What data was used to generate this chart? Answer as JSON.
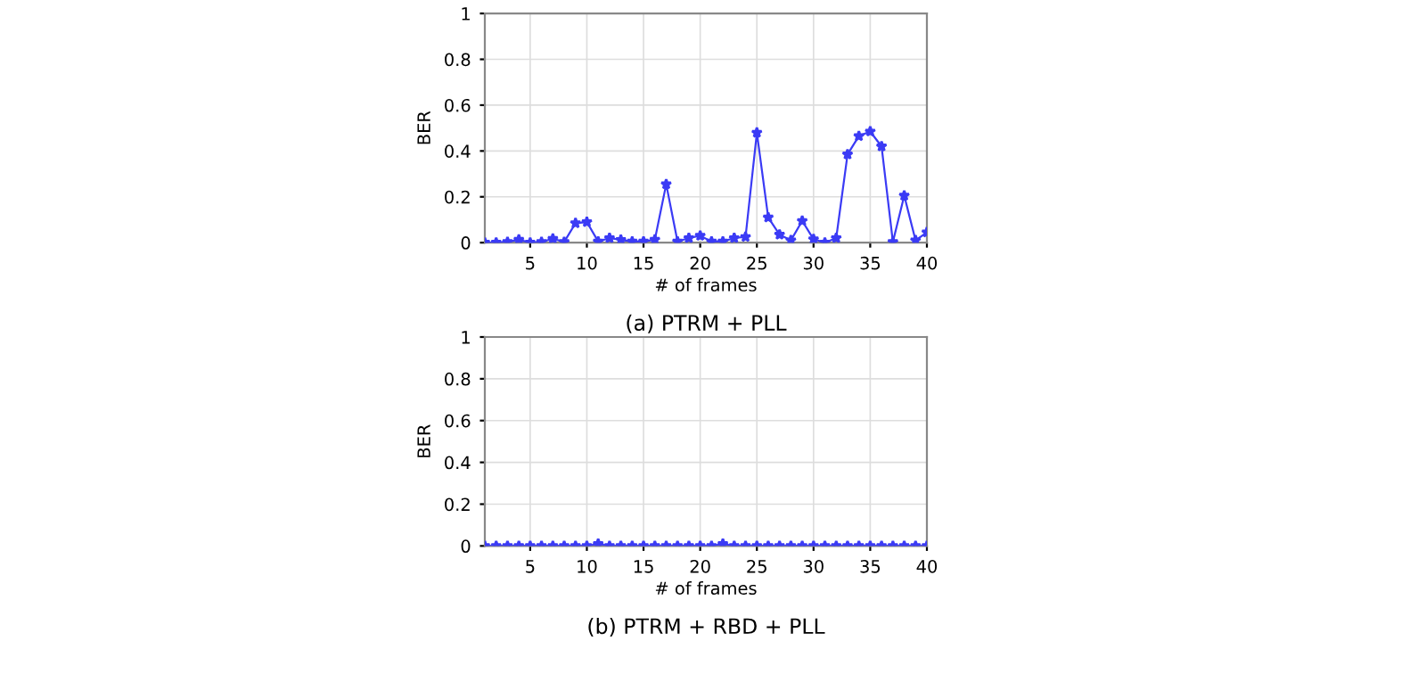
{
  "chart_data": [
    {
      "type": "line",
      "title": "(a) PTRM + PLL",
      "xlabel": "# of frames",
      "ylabel": "BER",
      "x": [
        1,
        2,
        3,
        4,
        5,
        6,
        7,
        8,
        9,
        10,
        11,
        12,
        13,
        14,
        15,
        16,
        17,
        18,
        19,
        20,
        21,
        22,
        23,
        24,
        25,
        26,
        27,
        28,
        29,
        30,
        31,
        32,
        33,
        34,
        35,
        36,
        37,
        38,
        39,
        40
      ],
      "series": [
        {
          "color": "#3b3bf5",
          "values": [
            0,
            0,
            0.003,
            0.013,
            0,
            0.003,
            0.017,
            0.003,
            0.085,
            0.09,
            0.005,
            0.02,
            0.012,
            0.005,
            0.005,
            0.013,
            0.255,
            0.005,
            0.02,
            0.03,
            0.005,
            0.005,
            0.02,
            0.025,
            0.48,
            0.11,
            0.035,
            0.01,
            0.095,
            0.015,
            0,
            0.02,
            0.385,
            0.465,
            0.485,
            0.42,
            0.003,
            0.205,
            0.01,
            0.045
          ]
        }
      ],
      "xlim": [
        1,
        40
      ],
      "xticks": [
        5,
        10,
        15,
        20,
        25,
        30,
        35,
        40
      ],
      "ylim": [
        0,
        1
      ],
      "yticks": [
        0,
        0.2,
        0.4,
        0.6,
        0.8,
        1
      ],
      "grid": true,
      "marker": "star",
      "line_style": "solid"
    },
    {
      "type": "line",
      "title": "(b) PTRM + RBD + PLL",
      "xlabel": "# of frames",
      "ylabel": "BER",
      "x": [
        1,
        2,
        3,
        4,
        5,
        6,
        7,
        8,
        9,
        10,
        11,
        12,
        13,
        14,
        15,
        16,
        17,
        18,
        19,
        20,
        21,
        22,
        23,
        24,
        25,
        26,
        27,
        28,
        29,
        30,
        31,
        32,
        33,
        34,
        35,
        36,
        37,
        38,
        39,
        40
      ],
      "series": [
        {
          "color": "#3b3bf5",
          "values": [
            0,
            0,
            0,
            0,
            0,
            0,
            0,
            0,
            0,
            0,
            0.01,
            0,
            0,
            0,
            0,
            0,
            0,
            0,
            0,
            0,
            0,
            0.01,
            0,
            0,
            0,
            0,
            0,
            0,
            0,
            0,
            0,
            0,
            0,
            0,
            0,
            0,
            0,
            0,
            0,
            0
          ]
        }
      ],
      "xlim": [
        1,
        40
      ],
      "xticks": [
        5,
        10,
        15,
        20,
        25,
        30,
        35,
        40
      ],
      "ylim": [
        0,
        1
      ],
      "yticks": [
        0,
        0.2,
        0.4,
        0.6,
        0.8,
        1
      ],
      "grid": true,
      "marker": "star",
      "line_style": "solid"
    }
  ]
}
